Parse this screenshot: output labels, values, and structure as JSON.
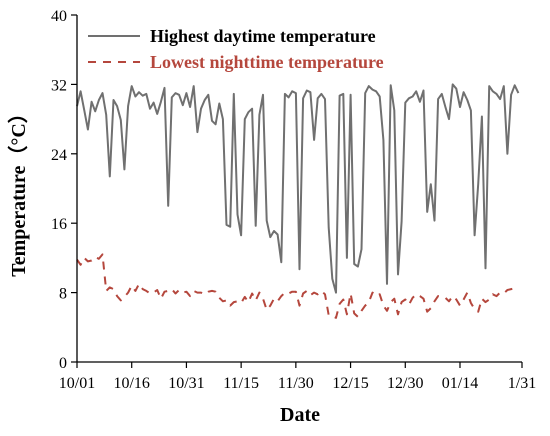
{
  "chart_data": {
    "type": "line",
    "xlabel": "Date",
    "ylabel": "Temperature（°C）",
    "ylim": [
      0,
      40
    ],
    "yticks": [
      0,
      8,
      16,
      24,
      32,
      40
    ],
    "xlim": [
      0,
      122
    ],
    "xticks": [
      {
        "label": "10/01",
        "day": 0
      },
      {
        "label": "10/16",
        "day": 15
      },
      {
        "label": "10/31",
        "day": 30
      },
      {
        "label": "11/15",
        "day": 45
      },
      {
        "label": "11/30",
        "day": 60
      },
      {
        "label": "12/15",
        "day": 75
      },
      {
        "label": "12/30",
        "day": 90
      },
      {
        "label": "01/14",
        "day": 105
      },
      {
        "label": "1/31",
        "day": 122
      }
    ],
    "grid": false,
    "legend_position": "top",
    "series": [
      {
        "name": "Highest daytime temperature",
        "style": "solid",
        "color": "#707070",
        "values": [
          29.5,
          31.2,
          29.0,
          26.8,
          30.0,
          28.9,
          30.2,
          31.0,
          28.5,
          21.4,
          30.2,
          29.5,
          27.9,
          22.2,
          29.5,
          31.8,
          30.6,
          31.1,
          30.7,
          30.9,
          29.2,
          29.9,
          28.6,
          30.0,
          31.6,
          18.0,
          30.5,
          31.0,
          30.8,
          29.6,
          31.0,
          29.4,
          31.8,
          26.5,
          29.2,
          30.2,
          30.8,
          27.8,
          27.4,
          29.8,
          28.0,
          15.8,
          15.6,
          30.9,
          17.0,
          14.6,
          28.0,
          28.8,
          29.2,
          15.7,
          28.5,
          30.8,
          16.3,
          14.4,
          15.1,
          14.7,
          11.5,
          30.9,
          30.5,
          31.2,
          31.0,
          10.7,
          30.4,
          31.3,
          31.1,
          25.6,
          30.4,
          30.9,
          30.3,
          15.5,
          9.6,
          8.0,
          30.7,
          30.9,
          12.0,
          30.8,
          11.3,
          11.0,
          13.0,
          31.0,
          31.8,
          31.4,
          31.2,
          30.6,
          25.6,
          9.0,
          31.9,
          29.0,
          10.1,
          16.2,
          29.9,
          30.4,
          30.6,
          31.2,
          30.0,
          31.3,
          17.3,
          20.5,
          16.3,
          30.3,
          30.9,
          29.4,
          28.0,
          32.0,
          31.5,
          29.4,
          31.1,
          30.2,
          29.0,
          14.6,
          20.5,
          28.3,
          10.8,
          31.8,
          31.2,
          30.9,
          30.3,
          31.8,
          24.0,
          30.8,
          31.9,
          31.0
        ]
      },
      {
        "name": "Lowest nighttime temperature",
        "style": "dashed",
        "color": "#b5473d",
        "values": [
          11.8,
          11.2,
          12.0,
          11.6,
          11.7,
          12.1,
          11.9,
          12.4,
          8.2,
          8.6,
          8.4,
          7.6,
          7.1,
          7.5,
          8.0,
          8.8,
          8.2,
          9.0,
          8.4,
          8.2,
          7.9,
          8.0,
          8.3,
          7.3,
          8.1,
          8.2,
          8.4,
          7.9,
          8.3,
          8.0,
          8.1,
          7.6,
          8.2,
          8.0,
          8.0,
          7.8,
          8.1,
          8.2,
          8.1,
          7.4,
          7.0,
          7.1,
          6.5,
          6.9,
          7.0,
          6.8,
          7.5,
          6.9,
          7.9,
          7.1,
          8.0,
          7.3,
          6.0,
          6.5,
          7.3,
          7.0,
          7.6,
          8.0,
          7.9,
          8.1,
          8.1,
          6.5,
          7.9,
          8.2,
          7.7,
          8.0,
          7.8,
          8.2,
          7.8,
          5.4,
          5.3,
          5.1,
          6.7,
          7.2,
          5.5,
          7.9,
          5.6,
          5.2,
          5.9,
          6.5,
          6.9,
          8.0,
          7.6,
          7.8,
          6.5,
          5.9,
          6.9,
          7.3,
          5.5,
          6.9,
          7.2,
          6.6,
          7.4,
          7.8,
          7.6,
          7.3,
          5.8,
          6.2,
          7.0,
          7.6,
          7.5,
          7.4,
          7.0,
          7.6,
          7.2,
          6.5,
          7.2,
          8.0,
          6.8,
          6.1,
          5.8,
          7.3,
          6.9,
          7.2,
          7.8,
          7.6,
          8.0,
          7.9,
          8.3,
          8.4,
          8.5,
          8.6
        ]
      }
    ]
  }
}
